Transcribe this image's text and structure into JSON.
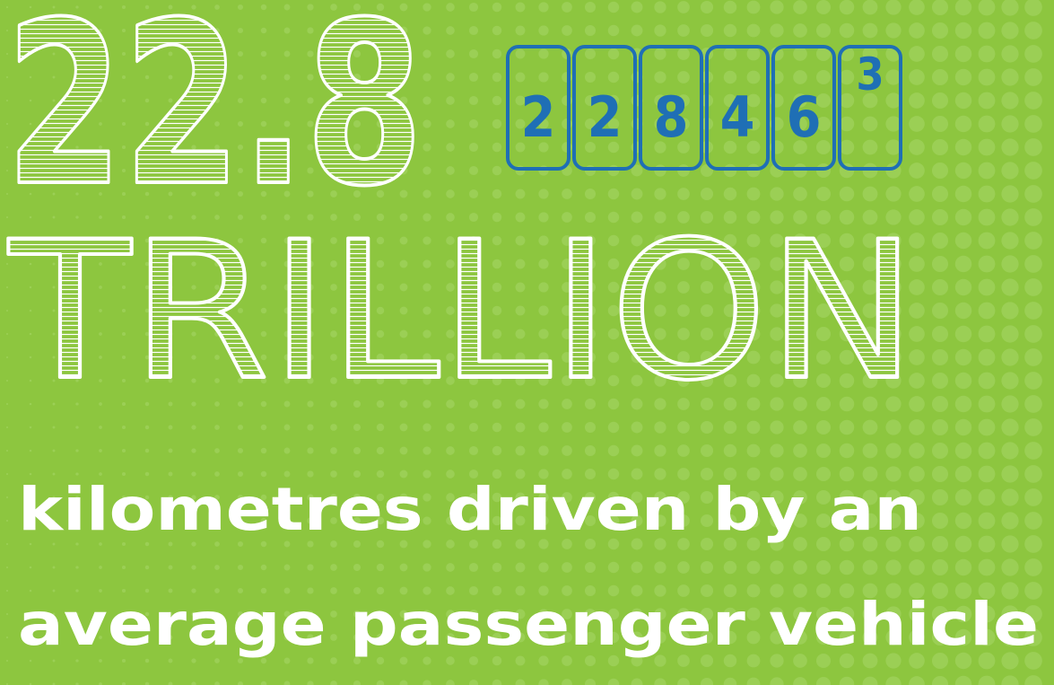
{
  "headline": {
    "number": "22.8",
    "odometer": [
      "2",
      "2",
      "8",
      "4",
      "6",
      "3"
    ],
    "unit": "TRILLION"
  },
  "caption": {
    "lines": [
      "kilometres driven by an",
      "average passenger vehicle"
    ]
  }
}
